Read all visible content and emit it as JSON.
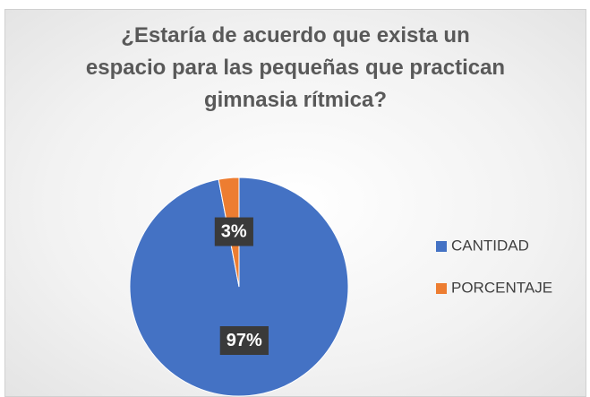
{
  "chart_data": {
    "type": "pie",
    "title": "¿Estaría de acuerdo que exista un espacio para las pequeñas que practican gimnasia rítmica?",
    "categories": [
      "CANTIDAD",
      "PORCENTAJE"
    ],
    "values": [
      97,
      3
    ],
    "value_labels": [
      "97%",
      "3%"
    ],
    "colors": [
      "#4472c4",
      "#ed7d31"
    ],
    "legend": "right"
  }
}
